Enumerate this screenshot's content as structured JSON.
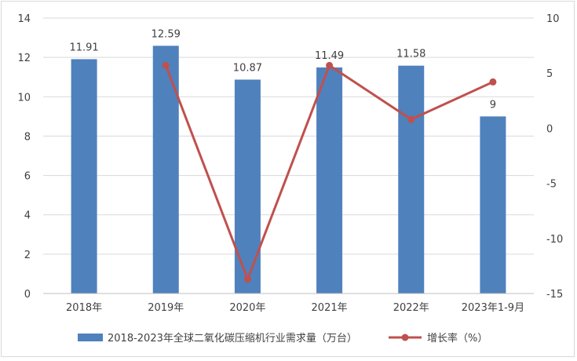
{
  "chart_data": {
    "type": "bar",
    "categories": [
      "2018年",
      "2019年",
      "2020年",
      "2021年",
      "2022年",
      "2023年1-9月"
    ],
    "series": [
      {
        "name": "2018-2023年全球二氧化碳压缩机行业需求量（万台）",
        "type": "bar",
        "axis": "left",
        "color": "#4f81bd",
        "values": [
          11.91,
          12.59,
          10.87,
          11.49,
          11.58,
          9
        ],
        "data_labels": [
          "11.91",
          "12.59",
          "10.87",
          "11.49",
          "11.58",
          "9"
        ]
      },
      {
        "name": "增长率（%）",
        "type": "line",
        "axis": "right",
        "color": "#c0504d",
        "values": [
          null,
          5.7,
          -13.7,
          5.7,
          0.8,
          4.2
        ]
      }
    ],
    "left_axis": {
      "min": 0,
      "max": 14,
      "ticks": [
        0,
        2,
        4,
        6,
        8,
        10,
        12,
        14
      ]
    },
    "right_axis": {
      "min": -15,
      "max": 10,
      "ticks": [
        -15,
        -10,
        -5,
        0,
        5,
        10
      ]
    },
    "grid": true,
    "legend": "bottom"
  }
}
